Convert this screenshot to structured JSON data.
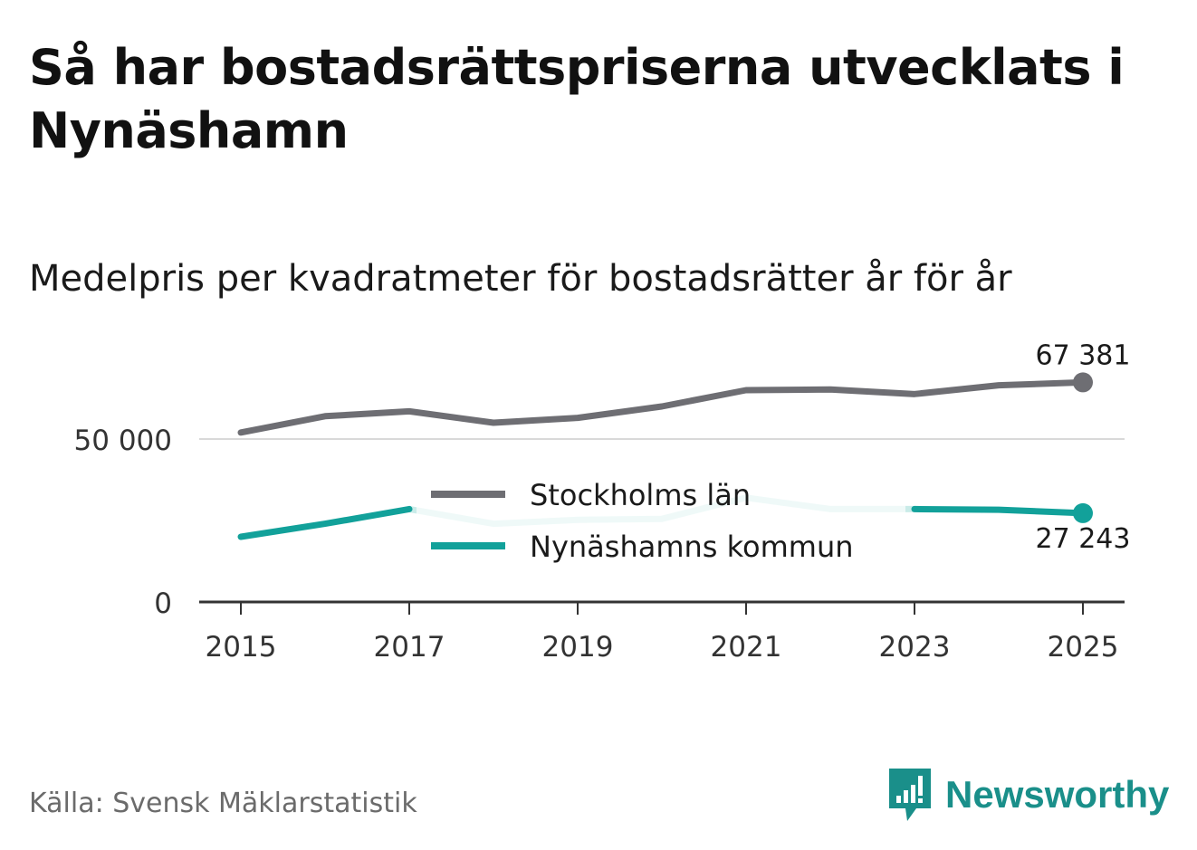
{
  "title": "Så har bostadsrättspriserna utvecklats i Nynäshamn",
  "subtitle": "Medelpris per kvadratmeter för bostadsrätter år för år",
  "source": "Källa: Svensk Mäklarstatistik",
  "brand": {
    "name": "Newsworthy",
    "icon": "newsworthy-logo-icon",
    "color": "#1a8f8a"
  },
  "colors": {
    "stockholm": "#6e6e73",
    "nynashamn": "#12a19a",
    "nynashamn_light": "#c9ebe8",
    "grid": "#d9d9d9",
    "axis": "#333333"
  },
  "chart_data": {
    "type": "line",
    "title": "Medelpris per kvadratmeter för bostadsrätter år för år",
    "xlabel": "",
    "ylabel": "",
    "x": [
      2015,
      2016,
      2017,
      2018,
      2019,
      2020,
      2021,
      2022,
      2023,
      2024,
      2025
    ],
    "xticks": [
      "2015",
      "2017",
      "2019",
      "2021",
      "2023",
      "2025"
    ],
    "yticks": [
      {
        "value": 0,
        "label": "0"
      },
      {
        "value": 50000,
        "label": "50 000"
      }
    ],
    "ylim": [
      0,
      75000
    ],
    "grid": true,
    "legend_position": "center",
    "series": [
      {
        "name": "Stockholms län",
        "values": [
          52000,
          57000,
          58500,
          55000,
          56500,
          60000,
          65000,
          65200,
          63800,
          66500,
          67381
        ],
        "end_label": "67 381"
      },
      {
        "name": "Nynäshamns kommun",
        "values": [
          20000,
          24000,
          28500,
          24000,
          25200,
          25500,
          32000,
          28500,
          28500,
          28300,
          27243
        ],
        "faded_range": [
          2017,
          2023
        ],
        "end_label": "27 243"
      }
    ]
  }
}
